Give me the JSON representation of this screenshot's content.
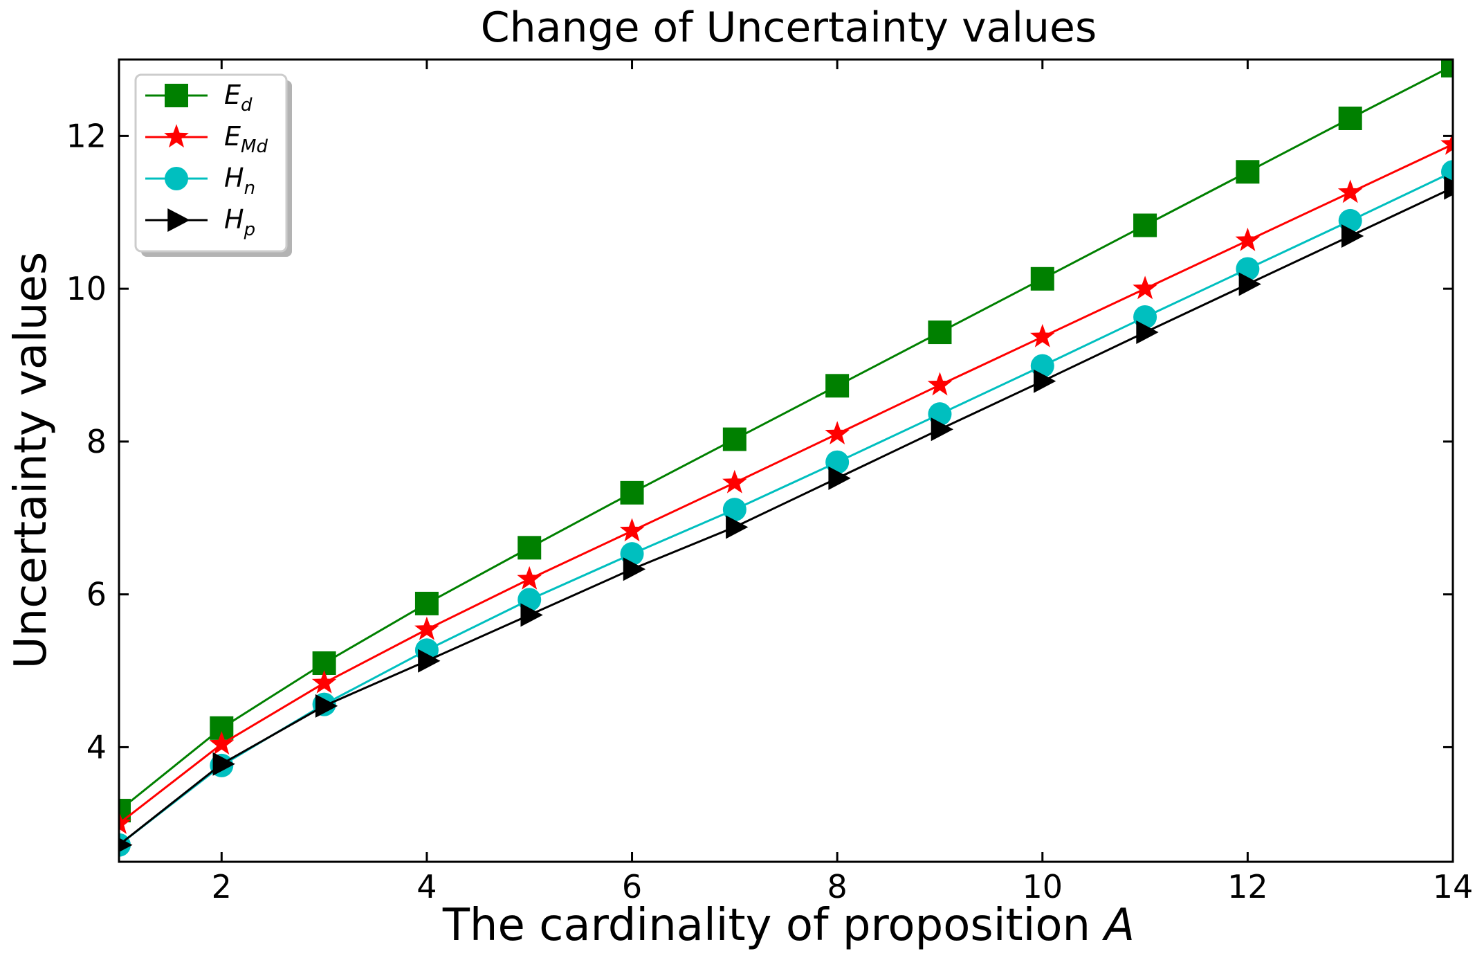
{
  "chart_data": {
    "type": "line",
    "title": "Change of Uncertainty values",
    "xlabel_prefix": "The cardinality of proposition ",
    "xlabel_var": "A",
    "ylabel": "Uncertainty values",
    "xlim": [
      1,
      14
    ],
    "ylim": [
      2.5,
      13
    ],
    "xticks": [
      2,
      4,
      6,
      8,
      10,
      12,
      14
    ],
    "yticks": [
      4,
      6,
      8,
      10,
      12
    ],
    "grid": false,
    "legend_position": "top-left",
    "x": [
      1,
      2,
      3,
      4,
      5,
      6,
      7,
      8,
      9,
      10,
      11,
      12,
      13,
      14
    ],
    "series": [
      {
        "name": "E_d",
        "label_main": "E",
        "label_sub": "d",
        "color": "#008000",
        "marker": "square",
        "values": [
          3.17,
          4.25,
          5.1,
          5.88,
          6.61,
          7.33,
          8.03,
          8.73,
          9.43,
          10.13,
          10.83,
          11.53,
          12.23,
          12.92
        ]
      },
      {
        "name": "E_Md",
        "label_main": "E",
        "label_sub": "Md",
        "color": "#ff0000",
        "marker": "star",
        "values": [
          3.0,
          4.04,
          4.84,
          5.54,
          6.2,
          6.83,
          7.46,
          8.1,
          8.74,
          9.37,
          10.0,
          10.63,
          11.26,
          11.89
        ]
      },
      {
        "name": "H_n",
        "label_main": "H",
        "label_sub": "n",
        "color": "#00bfbf",
        "marker": "circle",
        "values": [
          2.72,
          3.76,
          4.56,
          5.27,
          5.93,
          6.53,
          7.11,
          7.73,
          8.36,
          8.99,
          9.63,
          10.26,
          10.89,
          11.53
        ]
      },
      {
        "name": "H_p",
        "label_main": "H",
        "label_sub": "p",
        "color": "#000000",
        "marker": "triangle-right",
        "values": [
          2.72,
          3.78,
          4.54,
          5.13,
          5.73,
          6.33,
          6.88,
          7.52,
          8.16,
          8.79,
          9.43,
          10.06,
          10.69,
          11.32
        ]
      }
    ]
  }
}
